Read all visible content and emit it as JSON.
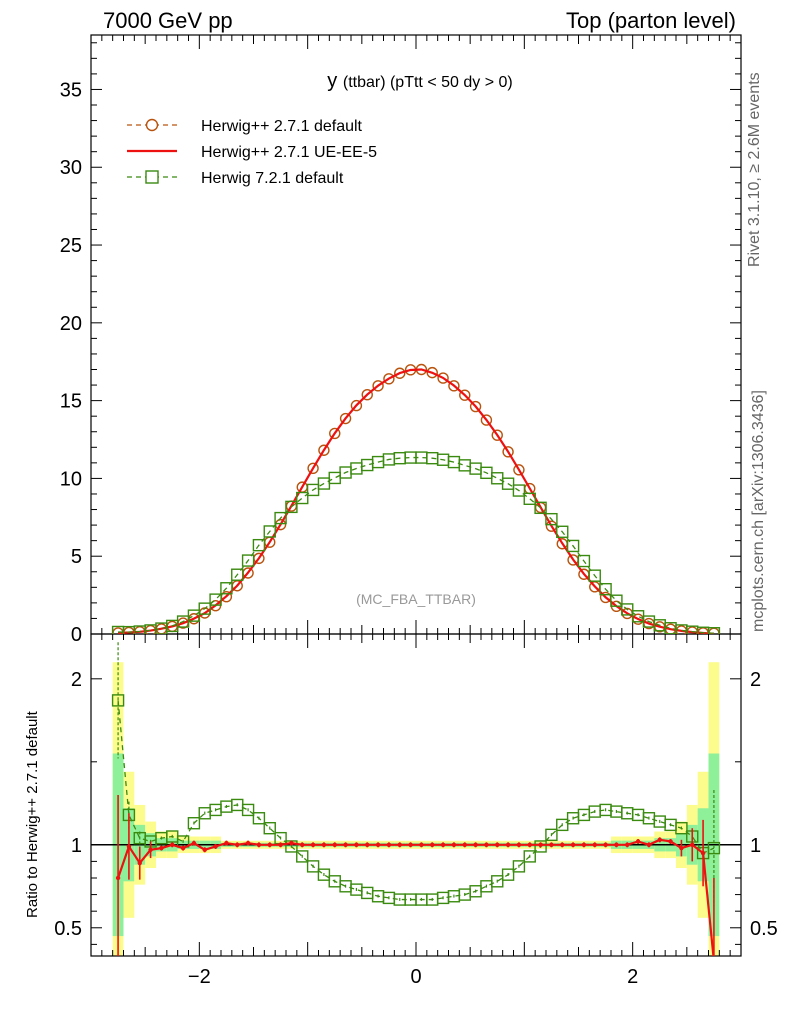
{
  "header": {
    "left": "7000 GeV pp",
    "right": "Top (parton level)"
  },
  "side_labels": {
    "rivet": "Rivet 3.1.10, ≥ 2.6M events",
    "mcplots": "mcplots.cern.ch [arXiv:1306.3436]"
  },
  "colors": {
    "default": "#b8530d",
    "ue": "#ee1111",
    "h7": "#3a8a10",
    "band_green": "#8ff09a",
    "band_yellow": "#fcfc8c"
  },
  "chart_data": [
    {
      "type": "line",
      "title": "y (ttbar) (pTtt < 50 dy > 0)",
      "title_parts": {
        "main": "y",
        "sub": "(ttbar) (pTtt < 50 dy > 0)"
      },
      "watermark": "(MC_FBA_TTBAR)",
      "xlim": [
        -3,
        3
      ],
      "ylim": [
        0,
        38.5
      ],
      "yticks": [
        0,
        5,
        10,
        15,
        20,
        25,
        30,
        35
      ],
      "ytick_labels": [
        "0",
        "5",
        "10",
        "15",
        "20",
        "25",
        "30",
        "35"
      ],
      "legend_position": "top-left",
      "series": [
        {
          "name": "Herwig++ 2.7.1 default",
          "key": "default",
          "marker": "circle",
          "style": "dashed",
          "x": [
            -2.75,
            -2.65,
            -2.55,
            -2.45,
            -2.35,
            -2.25,
            -2.15,
            -2.05,
            -1.95,
            -1.85,
            -1.75,
            -1.65,
            -1.55,
            -1.45,
            -1.35,
            -1.25,
            -1.15,
            -1.05,
            -0.95,
            -0.85,
            -0.75,
            -0.65,
            -0.55,
            -0.45,
            -0.35,
            -0.25,
            -0.15,
            -0.05,
            0.05,
            0.15,
            0.25,
            0.35,
            0.45,
            0.55,
            0.65,
            0.75,
            0.85,
            0.95,
            1.05,
            1.15,
            1.25,
            1.35,
            1.45,
            1.55,
            1.65,
            1.75,
            1.85,
            1.95,
            2.05,
            2.15,
            2.25,
            2.35,
            2.45,
            2.55,
            2.65,
            2.75
          ],
          "y": [
            0.07,
            0.1,
            0.15,
            0.22,
            0.33,
            0.49,
            0.7,
            0.98,
            1.35,
            1.82,
            2.4,
            3.1,
            3.92,
            4.86,
            5.9,
            7.03,
            8.22,
            9.44,
            10.65,
            11.81,
            12.89,
            13.85,
            14.68,
            15.38,
            15.95,
            16.4,
            16.76,
            16.98,
            17.0,
            16.8,
            16.45,
            15.95,
            15.35,
            14.62,
            13.75,
            12.78,
            11.71,
            10.55,
            9.35,
            8.13,
            6.93,
            5.8,
            4.76,
            3.84,
            3.03,
            2.35,
            1.78,
            1.32,
            0.95,
            0.67,
            0.46,
            0.31,
            0.2,
            0.13,
            0.08,
            0.05
          ]
        },
        {
          "name": "Herwig++ 2.7.1 UE-EE-5",
          "key": "ue",
          "marker": "none",
          "style": "solid",
          "x": [
            -2.75,
            -2.65,
            -2.55,
            -2.45,
            -2.35,
            -2.25,
            -2.15,
            -2.05,
            -1.95,
            -1.85,
            -1.75,
            -1.65,
            -1.55,
            -1.45,
            -1.35,
            -1.25,
            -1.15,
            -1.05,
            -0.95,
            -0.85,
            -0.75,
            -0.65,
            -0.55,
            -0.45,
            -0.35,
            -0.25,
            -0.15,
            -0.05,
            0.05,
            0.15,
            0.25,
            0.35,
            0.45,
            0.55,
            0.65,
            0.75,
            0.85,
            0.95,
            1.05,
            1.15,
            1.25,
            1.35,
            1.45,
            1.55,
            1.65,
            1.75,
            1.85,
            1.95,
            2.05,
            2.15,
            2.25,
            2.35,
            2.45,
            2.55,
            2.65,
            2.75
          ],
          "y": [
            0.06,
            0.1,
            0.14,
            0.22,
            0.34,
            0.49,
            0.69,
            0.99,
            1.34,
            1.84,
            2.43,
            3.11,
            3.95,
            4.87,
            5.91,
            7.04,
            8.24,
            9.45,
            10.66,
            11.82,
            12.9,
            13.86,
            14.7,
            15.39,
            15.96,
            16.42,
            16.77,
            16.97,
            17.0,
            16.79,
            16.46,
            15.97,
            15.36,
            14.63,
            13.76,
            12.79,
            11.72,
            10.56,
            9.36,
            8.15,
            6.95,
            5.83,
            4.79,
            3.86,
            3.06,
            2.36,
            1.79,
            1.33,
            0.96,
            0.67,
            0.47,
            0.31,
            0.2,
            0.12,
            0.07,
            0.0
          ]
        },
        {
          "name": "Herwig 7.2.1 default",
          "key": "h7",
          "marker": "square",
          "style": "dashed",
          "x": [
            -2.75,
            -2.65,
            -2.55,
            -2.45,
            -2.35,
            -2.25,
            -2.15,
            -2.05,
            -1.95,
            -1.85,
            -1.75,
            -1.65,
            -1.55,
            -1.45,
            -1.35,
            -1.25,
            -1.15,
            -1.05,
            -0.95,
            -0.85,
            -0.75,
            -0.65,
            -0.55,
            -0.45,
            -0.35,
            -0.25,
            -0.15,
            -0.05,
            0.05,
            0.15,
            0.25,
            0.35,
            0.45,
            0.55,
            0.65,
            0.75,
            0.85,
            0.95,
            1.05,
            1.15,
            1.25,
            1.35,
            1.45,
            1.55,
            1.65,
            1.75,
            1.85,
            1.95,
            2.05,
            2.15,
            2.25,
            2.35,
            2.45,
            2.55,
            2.65,
            2.75
          ],
          "y": [
            0.13,
            0.12,
            0.16,
            0.23,
            0.35,
            0.52,
            0.8,
            1.18,
            1.63,
            2.21,
            2.94,
            3.81,
            4.72,
            5.71,
            6.59,
            7.45,
            8.17,
            8.74,
            9.26,
            9.67,
            10.03,
            10.38,
            10.64,
            10.86,
            11.05,
            11.22,
            11.3,
            11.34,
            11.34,
            11.3,
            11.2,
            11.05,
            10.84,
            10.63,
            10.36,
            10.01,
            9.66,
            9.22,
            8.69,
            8.11,
            7.38,
            6.57,
            5.66,
            4.69,
            3.75,
            2.88,
            2.14,
            1.58,
            1.14,
            0.8,
            0.56,
            0.37,
            0.23,
            0.15,
            0.08,
            0.05
          ]
        }
      ]
    },
    {
      "type": "line",
      "ylabel": "Ratio to Herwig++ 2.7.1 default",
      "xlim": [
        -3,
        3
      ],
      "ylim": [
        0.33,
        2.27
      ],
      "xticks": [
        -2,
        0,
        2
      ],
      "xtick_labels": [
        "−2",
        "0",
        "2"
      ],
      "yticks": [
        0.5,
        1,
        2
      ],
      "ytick_labels": [
        "0.5",
        "1",
        "2"
      ],
      "reference": 1,
      "series": [
        {
          "name": "Herwig++ 2.7.1 UE-EE-5",
          "key": "ue",
          "x": [
            -2.75,
            -2.65,
            -2.55,
            -2.45,
            -2.35,
            -2.25,
            -2.15,
            -2.05,
            -1.95,
            -1.85,
            -1.75,
            -1.65,
            -1.55,
            -1.45,
            -1.35,
            -1.25,
            -1.15,
            -1.05,
            -0.95,
            -0.85,
            -0.75,
            -0.65,
            -0.55,
            -0.45,
            -0.35,
            -0.25,
            -0.15,
            -0.05,
            0.05,
            0.15,
            0.25,
            0.35,
            0.45,
            0.55,
            0.65,
            0.75,
            0.85,
            0.95,
            1.05,
            1.15,
            1.25,
            1.35,
            1.45,
            1.55,
            1.65,
            1.75,
            1.85,
            1.95,
            2.05,
            2.15,
            2.25,
            2.35,
            2.45,
            2.55,
            2.65,
            2.75
          ],
          "y": [
            0.8,
            0.99,
            0.89,
            0.97,
            0.98,
            1.0,
            0.98,
            1.01,
            0.97,
            0.99,
            1.01,
            1.0,
            1.01,
            1.0,
            1.0,
            1.0,
            1.01,
            1.0,
            1.0,
            1.0,
            1.0,
            1.0,
            1.0,
            1.0,
            1.0,
            1.0,
            1.0,
            1.0,
            1.0,
            1.0,
            1.0,
            1.0,
            1.0,
            1.0,
            1.0,
            1.0,
            1.0,
            1.0,
            1.0,
            1.0,
            1.0,
            1.0,
            1.0,
            1.0,
            1.0,
            1.0,
            1.0,
            1.0,
            1.02,
            1.0,
            1.03,
            1.02,
            0.98,
            1.0,
            0.95,
            0.3
          ]
        },
        {
          "name": "Herwig 7.2.1 default",
          "key": "h7",
          "x": [
            -2.75,
            -2.65,
            -2.55,
            -2.45,
            -2.35,
            -2.25,
            -2.15,
            -2.05,
            -1.95,
            -1.85,
            -1.75,
            -1.65,
            -1.55,
            -1.45,
            -1.35,
            -1.25,
            -1.15,
            -1.05,
            -0.95,
            -0.85,
            -0.75,
            -0.65,
            -0.55,
            -0.45,
            -0.35,
            -0.25,
            -0.15,
            -0.05,
            0.05,
            0.15,
            0.25,
            0.35,
            0.45,
            0.55,
            0.65,
            0.75,
            0.85,
            0.95,
            1.05,
            1.15,
            1.25,
            1.35,
            1.45,
            1.55,
            1.65,
            1.75,
            1.85,
            1.95,
            2.05,
            2.15,
            2.25,
            2.35,
            2.45,
            2.55,
            2.65,
            2.75
          ],
          "y": [
            1.87,
            1.18,
            1.04,
            1.02,
            1.04,
            1.05,
            1.02,
            1.13,
            1.19,
            1.21,
            1.23,
            1.24,
            1.21,
            1.16,
            1.1,
            1.04,
            0.99,
            0.93,
            0.87,
            0.82,
            0.78,
            0.75,
            0.73,
            0.71,
            0.69,
            0.68,
            0.67,
            0.67,
            0.67,
            0.67,
            0.68,
            0.69,
            0.7,
            0.72,
            0.75,
            0.78,
            0.82,
            0.87,
            0.93,
            0.99,
            1.06,
            1.12,
            1.16,
            1.18,
            1.2,
            1.21,
            1.2,
            1.19,
            1.18,
            1.16,
            1.14,
            1.12,
            1.1,
            1.05,
            0.95,
            0.98
          ]
        }
      ]
    }
  ]
}
